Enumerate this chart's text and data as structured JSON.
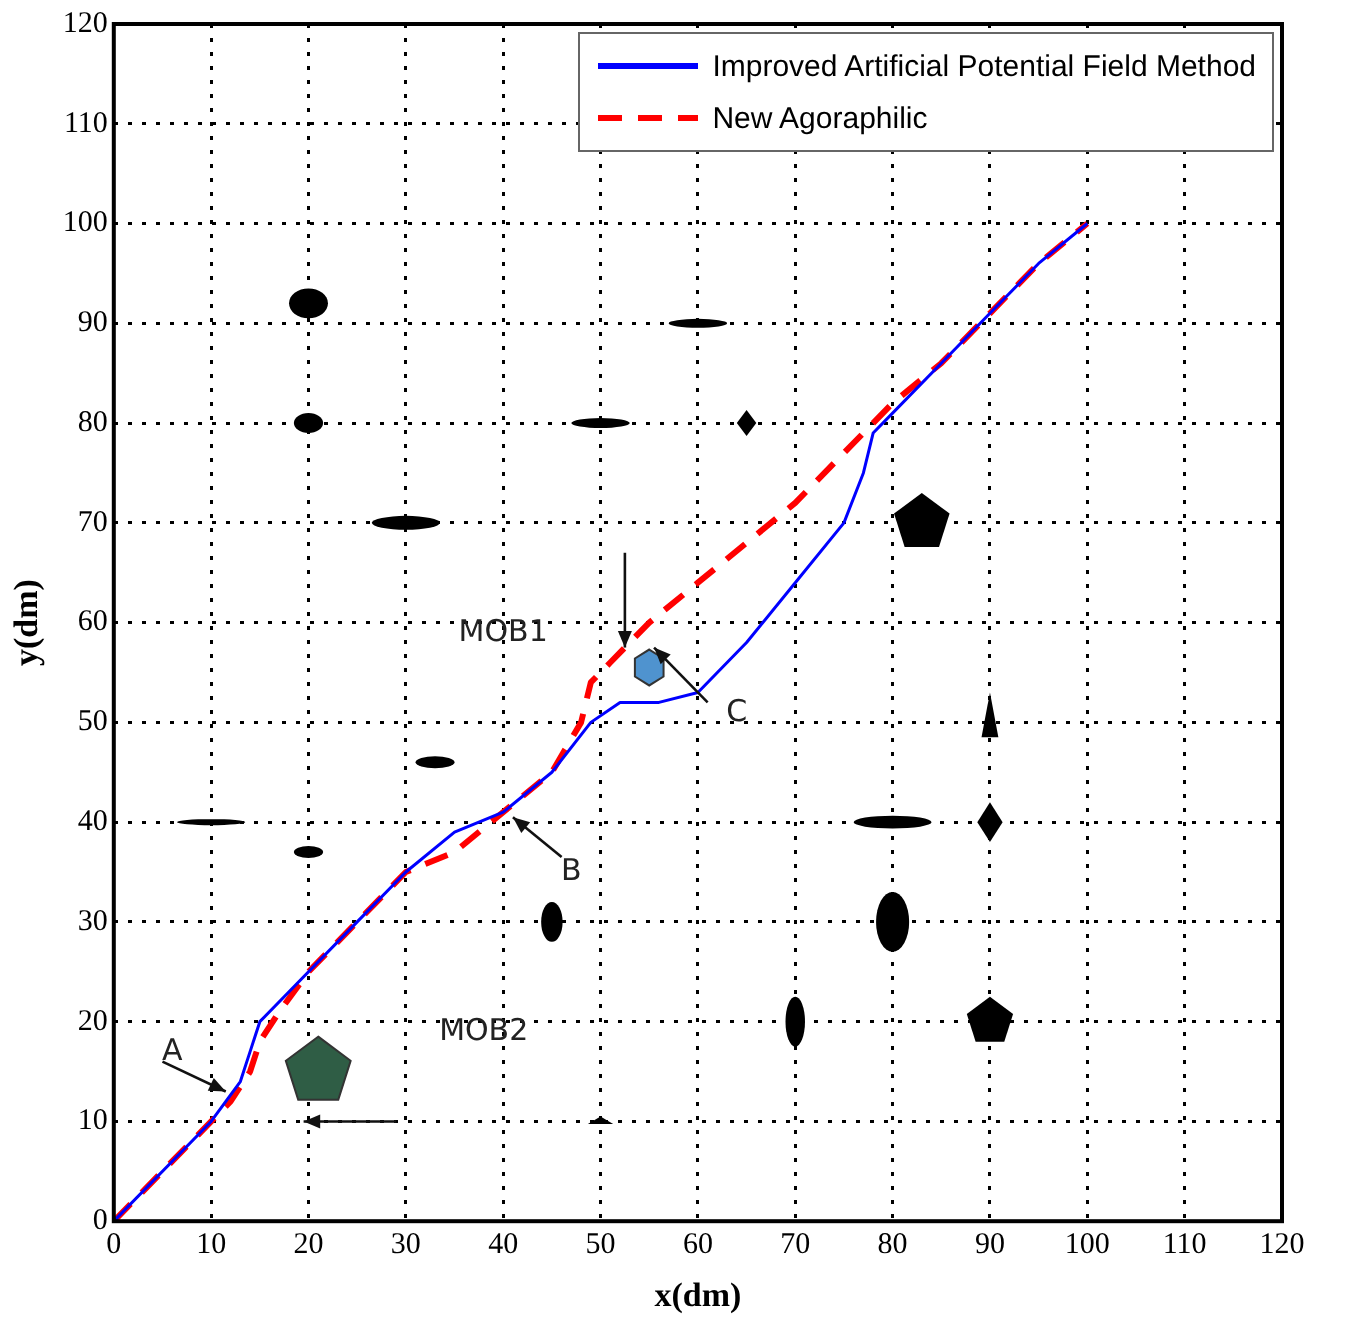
{
  "chart_data": {
    "type": "line",
    "xlabel": "x(dm)",
    "ylabel": "y(dm)",
    "xlim": [
      0,
      120
    ],
    "ylim": [
      0,
      120
    ],
    "xticks": [
      0,
      10,
      20,
      30,
      40,
      50,
      60,
      70,
      80,
      90,
      100,
      110,
      120
    ],
    "yticks": [
      0,
      10,
      20,
      30,
      40,
      50,
      60,
      70,
      80,
      90,
      100,
      110,
      120
    ],
    "grid": true,
    "legend": "top right",
    "series": [
      {
        "name": "Improved Artificial Potential Field Method",
        "color": "#0000ff",
        "line_style": "solid",
        "x": [
          0,
          10,
          13,
          14,
          15,
          18,
          25,
          30,
          35,
          40,
          45,
          49,
          52,
          56,
          60,
          65,
          70,
          75,
          77,
          78,
          80,
          85,
          90,
          95,
          100
        ],
        "values": [
          0,
          10,
          14,
          17,
          20,
          23,
          30,
          35,
          39,
          41,
          45,
          50,
          52,
          52,
          53,
          58,
          64,
          70,
          75,
          79,
          81,
          86,
          91,
          96,
          100
        ]
      },
      {
        "name": "New Agoraphilic",
        "color": "#ff0000",
        "line_style": "dashed",
        "x": [
          0,
          12,
          14,
          15,
          17,
          20,
          25,
          30,
          35,
          40,
          45,
          48,
          49,
          51,
          55,
          60,
          65,
          70,
          75,
          80,
          85,
          90,
          95,
          100
        ],
        "values": [
          0,
          12,
          15,
          18,
          21,
          25,
          30,
          35,
          37,
          41,
          45,
          50,
          54,
          56,
          60,
          64,
          68,
          72,
          77,
          82,
          86,
          91,
          96,
          100
        ]
      }
    ],
    "annotations": [
      "MOB1",
      "MOB2",
      "A",
      "B",
      "C"
    ]
  }
}
